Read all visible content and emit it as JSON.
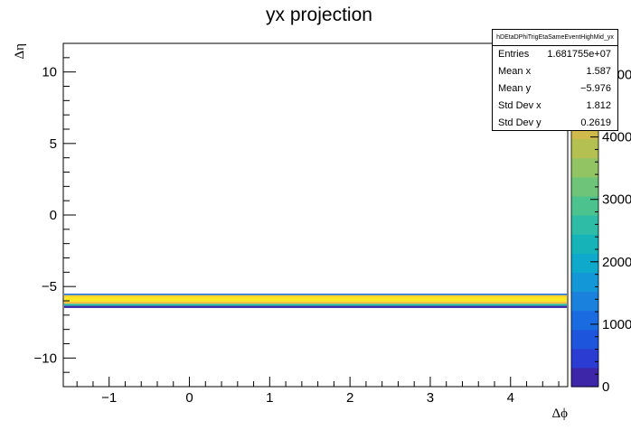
{
  "chart_data": {
    "type": "heatmap",
    "title": "yx projection",
    "xlabel": "Δϕ",
    "ylabel": "Δη",
    "xlim": [
      -1.571,
      4.712
    ],
    "ylim": [
      -12,
      12
    ],
    "xticks": [
      -1,
      0,
      1,
      2,
      3,
      4
    ],
    "yticks": [
      -10,
      -5,
      0,
      5,
      10
    ],
    "color_scale": {
      "min": 0,
      "max": 5500,
      "ticks": [
        0,
        1000,
        2000,
        3000,
        4000,
        5000
      ],
      "tick_labels": [
        "0",
        "1000",
        "2000",
        "3000",
        "4000",
        "5000"
      ],
      "palette": [
        "#3d26a8",
        "#2a3cd2",
        "#1e55dd",
        "#1a6be0",
        "#1a82dc",
        "#1497d6",
        "#0fa9cc",
        "#16b4b9",
        "#2fbca6",
        "#4cc28f",
        "#6ec478",
        "#92c464",
        "#b4c052",
        "#d1ba4c",
        "#e7b94b",
        "#f7c23c",
        "#fcd52c",
        "#fbe81d"
      ]
    },
    "band": {
      "y_range": [
        -6.5,
        -5.5
      ],
      "rows": [
        {
          "y": [
            -6.5,
            -6.35
          ],
          "value": 200
        },
        {
          "y": [
            -6.35,
            -6.2
          ],
          "value": 2600
        },
        {
          "y": [
            -6.2,
            -6.05
          ],
          "value": 4600
        },
        {
          "y": [
            -6.05,
            -5.9
          ],
          "value": 5300
        },
        {
          "y": [
            -5.9,
            -5.75
          ],
          "value": 5500
        },
        {
          "y": [
            -5.75,
            -5.6
          ],
          "value": 4900
        },
        {
          "y": [
            -5.6,
            -5.5
          ],
          "value": 1200
        }
      ]
    },
    "stats": {
      "name": "hDEtaDPhiTrigEtaSameEventHighMid_yx",
      "rows": [
        {
          "label": "Entries",
          "value": "1.681755e+07"
        },
        {
          "label": "Mean x",
          "value": "1.587"
        },
        {
          "label": "Mean y",
          "value": "−5.976"
        },
        {
          "label": "Std Dev x",
          "value": "1.812"
        },
        {
          "label": "Std Dev y",
          "value": "0.2619"
        }
      ]
    }
  }
}
